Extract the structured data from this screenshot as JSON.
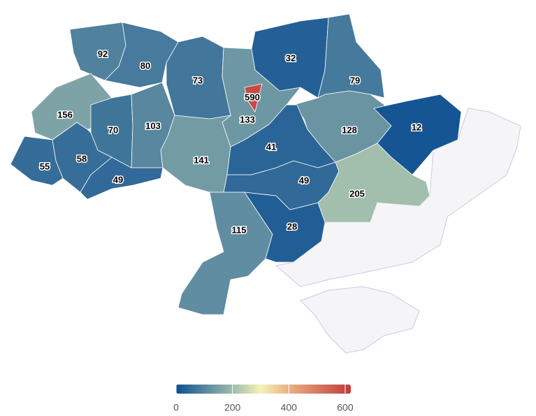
{
  "chart_data": {
    "type": "choropleth",
    "values": [
      92,
      80,
      73,
      590,
      133,
      32,
      79,
      156,
      70,
      103,
      128,
      12,
      55,
      58,
      49,
      141,
      41,
      49,
      205,
      115,
      28
    ],
    "clim": [
      0,
      620
    ],
    "cticks": [
      0,
      200,
      400,
      600
    ],
    "colorscale": [
      {
        "value": 0,
        "color": "#0d4f91"
      },
      {
        "value": 200,
        "color": "#9ebbac"
      },
      {
        "value": 300,
        "color": "#f5f2b8"
      },
      {
        "value": 400,
        "color": "#e8b283"
      },
      {
        "value": 620,
        "color": "#c23a3a"
      }
    ],
    "no_data_color": "#f5f5f8"
  }
}
